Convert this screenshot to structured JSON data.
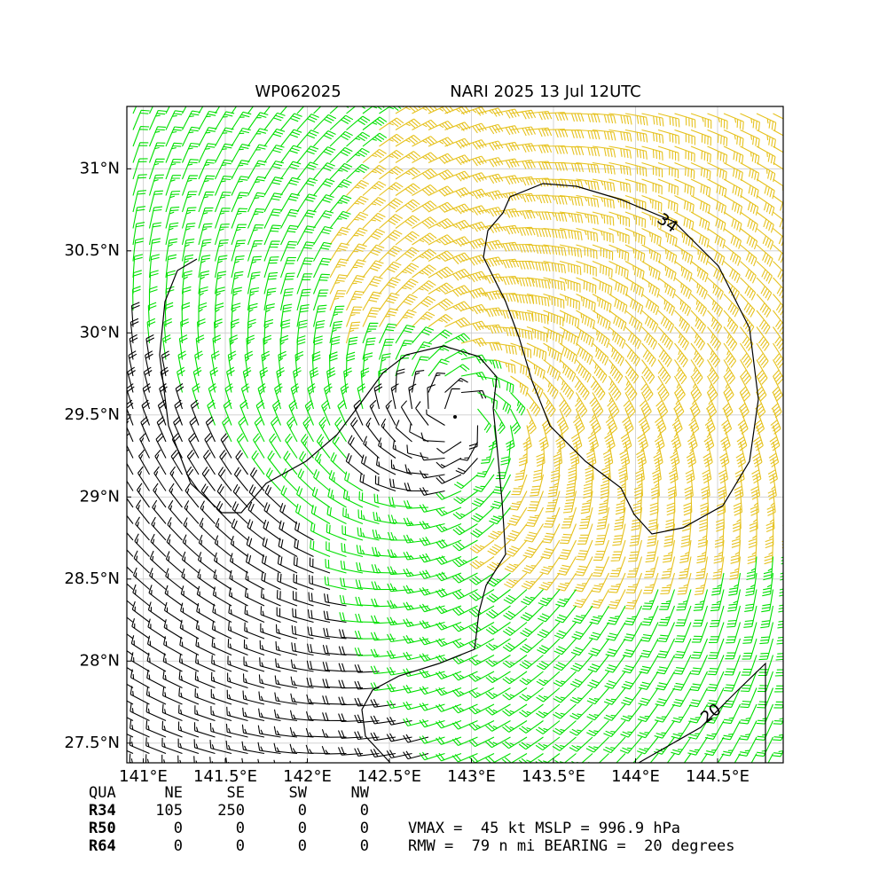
{
  "map": {
    "title_left": "WP062025",
    "title_right": "NARI 2025 13 Jul 12UTC",
    "xlim": [
      140.9,
      144.9
    ],
    "ylim": [
      27.38,
      31.38
    ],
    "xticks": [
      {
        "value": 141,
        "label": "141°E"
      },
      {
        "value": 141.5,
        "label": "141.5°E"
      },
      {
        "value": 142,
        "label": "142°E"
      },
      {
        "value": 142.5,
        "label": "142.5°E"
      },
      {
        "value": 143,
        "label": "143°E"
      },
      {
        "value": 143.5,
        "label": "143.5°E"
      },
      {
        "value": 144,
        "label": "144°E"
      },
      {
        "value": 144.5,
        "label": "144.5°E"
      }
    ],
    "yticks": [
      {
        "value": 27.5,
        "label": "27.5°N"
      },
      {
        "value": 28,
        "label": "28°N"
      },
      {
        "value": 28.5,
        "label": "28.5°N"
      },
      {
        "value": 29,
        "label": "29°N"
      },
      {
        "value": 29.5,
        "label": "29.5°N"
      },
      {
        "value": 30,
        "label": "30°N"
      },
      {
        "value": 30.5,
        "label": "30.5°N"
      },
      {
        "value": 31,
        "label": "31°N"
      }
    ],
    "grid": true,
    "contour_labels": [
      "34",
      "20"
    ]
  },
  "table": {
    "header": [
      "QUA",
      "NE",
      "SE",
      "SW",
      "NW"
    ],
    "rows": [
      [
        "R34",
        105,
        250,
        0,
        0
      ],
      [
        "R50",
        0,
        0,
        0,
        0
      ],
      [
        "R64",
        0,
        0,
        0,
        0
      ]
    ]
  },
  "info": [
    "VMAX =  45 kt MSLP = 996.9 hPa",
    "RMW =  79 n mi BEARING =  20 degrees"
  ]
}
